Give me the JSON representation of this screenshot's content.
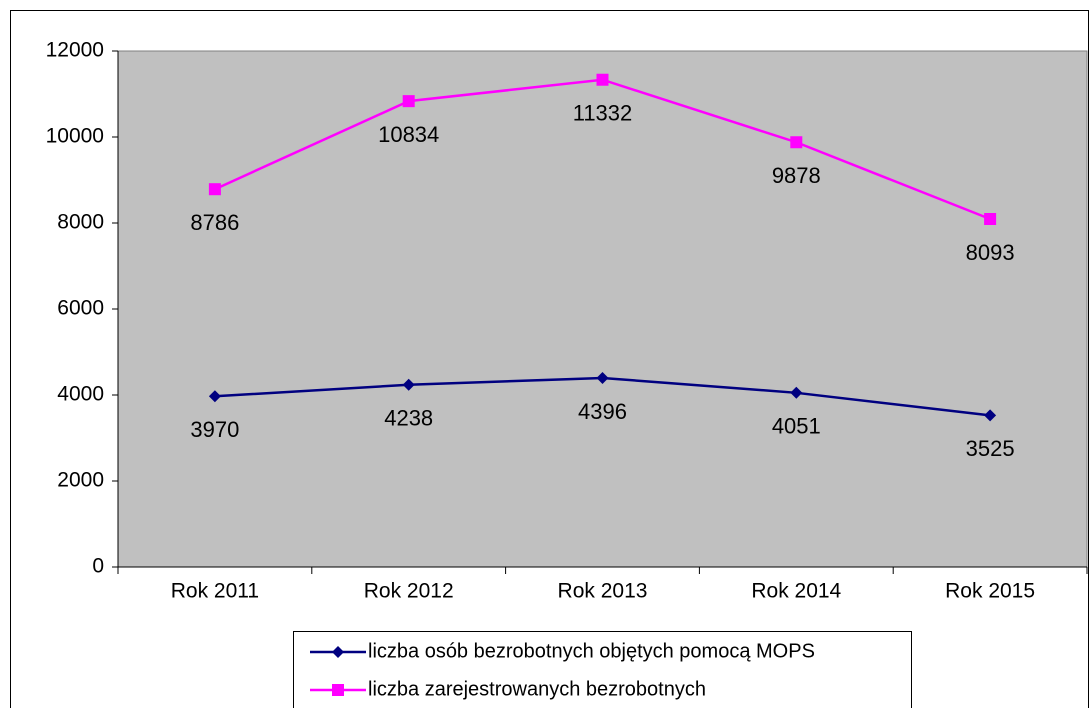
{
  "chart_data": {
    "type": "line",
    "categories": [
      "Rok 2011",
      "Rok 2012",
      "Rok 2013",
      "Rok 2014",
      "Rok 2015"
    ],
    "series": [
      {
        "name": "liczba osób bezrobotnych objętych pomocą MOPS",
        "color": "#000080",
        "marker": "diamond",
        "values": [
          3970,
          4238,
          4396,
          4051,
          3525
        ]
      },
      {
        "name": "liczba zarejestrowanych bezrobotnych",
        "color": "#ff00ff",
        "marker": "square",
        "values": [
          8786,
          10834,
          11332,
          9878,
          8093
        ]
      }
    ],
    "ylim": [
      0,
      12000
    ],
    "yticks": [
      0,
      2000,
      4000,
      6000,
      8000,
      10000,
      12000
    ],
    "plot_background": "#c0c0c0",
    "legend": "bottom"
  }
}
